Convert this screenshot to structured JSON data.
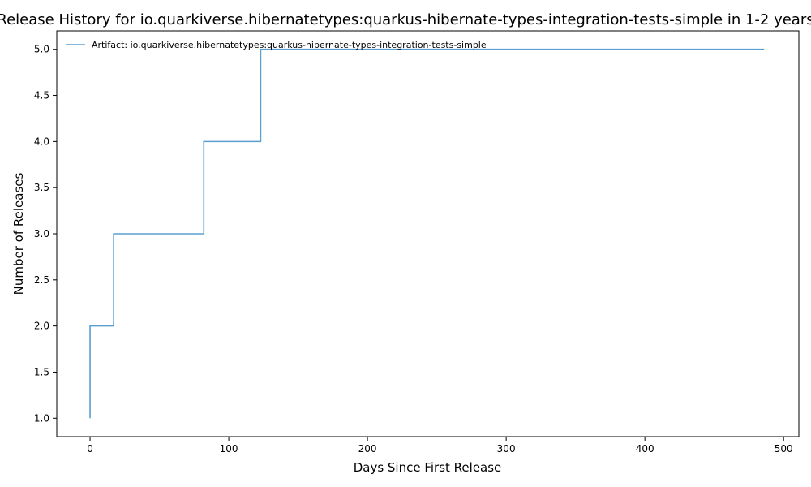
{
  "chart_data": {
    "type": "line",
    "step": "post",
    "title": "Release History for io.quarkiverse.hibernatetypes:quarkus-hibernate-types-integration-tests-simple in 1-2 years",
    "xlabel": "Days Since First Release",
    "ylabel": "Number of Releases",
    "xlim": [
      -24,
      511
    ],
    "ylim": [
      0.8,
      5.2
    ],
    "xticks": [
      0,
      100,
      200,
      300,
      400,
      500
    ],
    "yticks": [
      1.0,
      1.5,
      2.0,
      2.5,
      3.0,
      3.5,
      4.0,
      4.5,
      5.0
    ],
    "xtick_labels": [
      "0",
      "100",
      "200",
      "300",
      "400",
      "500"
    ],
    "ytick_labels": [
      "1.0",
      "1.5",
      "2.0",
      "2.5",
      "3.0",
      "3.5",
      "4.0",
      "4.5",
      "5.0"
    ],
    "legend_position": "upper-left",
    "grid": false,
    "series": [
      {
        "name": "Artifact: io.quarkiverse.hibernatetypes:quarkus-hibernate-types-integration-tests-simple",
        "color": "#5b9fd1",
        "x": [
          0,
          0,
          17,
          82,
          123,
          486
        ],
        "y": [
          1,
          2,
          3,
          4,
          5,
          5
        ]
      }
    ]
  }
}
